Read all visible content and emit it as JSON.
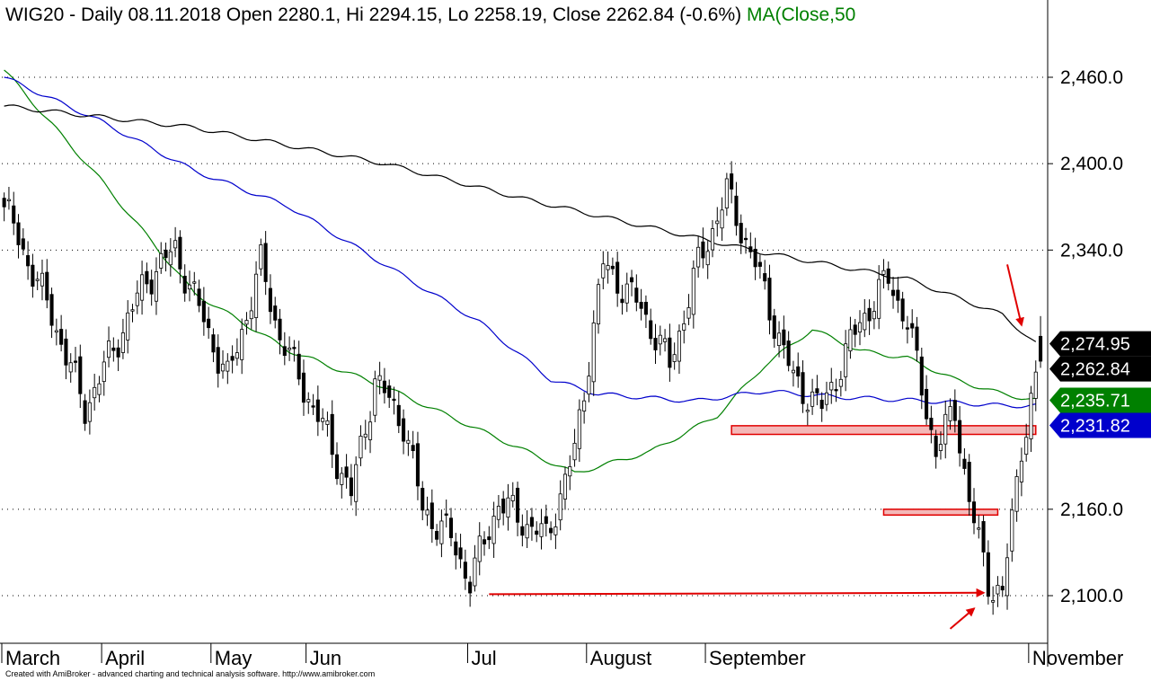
{
  "header": {
    "title": "WIG20 - Daily 08.11.2018 Open 2280.1, Hi 2294.15, Lo 2258.19, Close 2262.84 (-0.6%)",
    "ma_label": "MA(Close,50"
  },
  "footer": {
    "credit": "Created with AmiBroker - advanced charting and technical analysis software. http://www.amibroker.com"
  },
  "chart_data": {
    "type": "candlestick",
    "title": "WIG20 - Daily 08.11.2018",
    "summary": {
      "open": 2280.1,
      "high": 2294.15,
      "low": 2258.19,
      "close": 2262.84,
      "change_pct": -0.6
    },
    "y_axis": {
      "ticks": [
        2100,
        2160,
        2340,
        2400,
        2460
      ],
      "tick_labels": [
        "2,100.0",
        "2,160.0",
        "2,340.0",
        "2,400.0",
        "2,460.0"
      ],
      "range": [
        2085,
        2478
      ],
      "grid": true
    },
    "x_axis": {
      "months": [
        "March",
        "April",
        "May",
        "Jun",
        "Jul",
        "August",
        "September",
        "November"
      ],
      "month_start_index": [
        0,
        21,
        44,
        64,
        98,
        123,
        148,
        216
      ]
    },
    "value_badges": [
      {
        "label": "2,274.95",
        "value": 2274.95,
        "color": "#000000"
      },
      {
        "label": "2,262.84",
        "value": 2262.84,
        "color": "#000000"
      },
      {
        "label": "2,235.71",
        "value": 2235.71,
        "color": "#008000"
      },
      {
        "label": "2,231.82",
        "value": 2231.82,
        "color": "#0000cc"
      }
    ],
    "anchors": [
      [
        0,
        2370
      ],
      [
        10,
        2295
      ],
      [
        17,
        2230
      ],
      [
        30,
        2320
      ],
      [
        36,
        2340
      ],
      [
        47,
        2250
      ],
      [
        54,
        2330
      ],
      [
        58,
        2280
      ],
      [
        68,
        2210
      ],
      [
        73,
        2170
      ],
      [
        78,
        2250
      ],
      [
        84,
        2220
      ],
      [
        88,
        2160
      ],
      [
        94,
        2140
      ],
      [
        98,
        2110
      ],
      [
        104,
        2165
      ],
      [
        114,
        2140
      ],
      [
        120,
        2200
      ],
      [
        126,
        2330
      ],
      [
        134,
        2300
      ],
      [
        140,
        2260
      ],
      [
        146,
        2330
      ],
      [
        152,
        2380
      ],
      [
        158,
        2330
      ],
      [
        166,
        2250
      ],
      [
        172,
        2230
      ],
      [
        180,
        2290
      ],
      [
        186,
        2320
      ],
      [
        190,
        2290
      ],
      [
        196,
        2200
      ],
      [
        200,
        2230
      ],
      [
        203,
        2165
      ],
      [
        207,
        2110
      ],
      [
        210,
        2100
      ],
      [
        214,
        2205
      ],
      [
        218,
        2262.84
      ]
    ],
    "moving_averages": [
      {
        "color": "#008000",
        "points": [
          [
            0,
            2465
          ],
          [
            20,
            2390
          ],
          [
            40,
            2310
          ],
          [
            60,
            2270
          ],
          [
            80,
            2245
          ],
          [
            100,
            2215
          ],
          [
            120,
            2185
          ],
          [
            136,
            2200
          ],
          [
            150,
            2225
          ],
          [
            160,
            2260
          ],
          [
            170,
            2285
          ],
          [
            180,
            2270
          ],
          [
            190,
            2265
          ],
          [
            200,
            2250
          ],
          [
            210,
            2240
          ],
          [
            217,
            2235.71
          ]
        ]
      },
      {
        "color": "#0000cc",
        "points": [
          [
            0,
            2460
          ],
          [
            20,
            2430
          ],
          [
            40,
            2395
          ],
          [
            60,
            2370
          ],
          [
            80,
            2330
          ],
          [
            100,
            2290
          ],
          [
            115,
            2250
          ],
          [
            125,
            2240
          ],
          [
            145,
            2235
          ],
          [
            160,
            2242
          ],
          [
            175,
            2238
          ],
          [
            195,
            2235
          ],
          [
            210,
            2232
          ],
          [
            217,
            2231.82
          ]
        ]
      },
      {
        "color": "#000000",
        "points": [
          [
            0,
            2440
          ],
          [
            40,
            2425
          ],
          [
            80,
            2400
          ],
          [
            110,
            2375
          ],
          [
            130,
            2360
          ],
          [
            160,
            2338
          ],
          [
            190,
            2320
          ],
          [
            210,
            2295
          ],
          [
            217,
            2274.95
          ]
        ]
      }
    ],
    "support_zones": [
      {
        "start": 153,
        "end": 217,
        "low": 2212,
        "high": 2218
      },
      {
        "start": 185,
        "end": 209,
        "low": 2156,
        "high": 2160
      }
    ],
    "annotations": [
      {
        "type": "arrow",
        "from": [
          102,
          2101
        ],
        "to": [
          206,
          2102
        ]
      },
      {
        "type": "arrow",
        "from": [
          199,
          2077
        ],
        "to": [
          204,
          2091
        ]
      },
      {
        "type": "arrow",
        "from": [
          211,
          2330
        ],
        "to": [
          214,
          2288
        ]
      }
    ]
  }
}
